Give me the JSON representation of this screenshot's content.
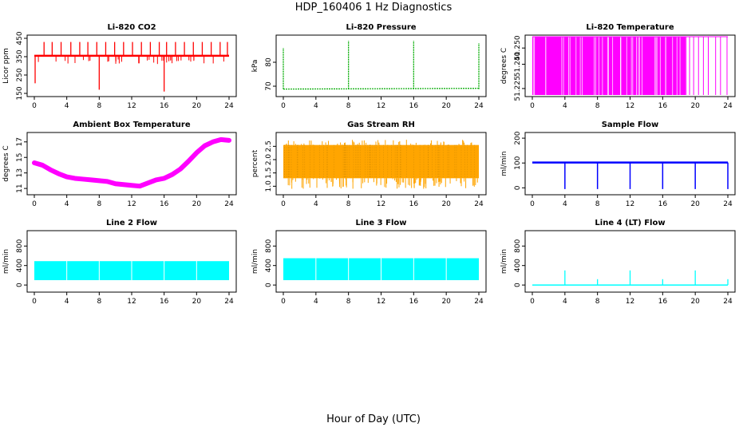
{
  "title": "HDP_160406  1 Hz Diagnostics",
  "xlabel": "Hour of Day (UTC)",
  "chart_data": [
    {
      "type": "line",
      "title": "Li-820 CO2",
      "ylabel": "Licor ppm",
      "color": "#ff0000",
      "xticks": [
        "0",
        "4",
        "8",
        "12",
        "16",
        "20",
        "24"
      ],
      "xlim": [
        0,
        24
      ],
      "yticks": [
        "150",
        "250",
        "350",
        "450"
      ],
      "ylim": [
        150,
        450
      ],
      "baseline": 355,
      "spikes": [
        [
          0.1,
          205
        ],
        [
          1.2,
          430
        ],
        [
          2.2,
          430
        ],
        [
          3.3,
          430
        ],
        [
          4.5,
          430
        ],
        [
          5.6,
          430
        ],
        [
          6.6,
          430
        ],
        [
          7.7,
          430
        ],
        [
          8.0,
          170
        ],
        [
          8.8,
          430
        ],
        [
          9.9,
          430
        ],
        [
          11.0,
          430
        ],
        [
          12.1,
          430
        ],
        [
          13.2,
          430
        ],
        [
          14.3,
          430
        ],
        [
          15.4,
          430
        ],
        [
          16.0,
          160
        ],
        [
          16.3,
          430
        ],
        [
          17.4,
          430
        ],
        [
          18.5,
          430
        ],
        [
          19.6,
          430
        ],
        [
          20.7,
          430
        ],
        [
          21.8,
          430
        ],
        [
          22.9,
          430
        ],
        [
          23.8,
          430
        ]
      ]
    },
    {
      "type": "line",
      "title": "Li-820 Pressure",
      "ylabel": "kPa",
      "color": "#00aa00",
      "xticks": [
        "0",
        "4",
        "8",
        "12",
        "16",
        "20",
        "24"
      ],
      "xlim": [
        0,
        24
      ],
      "yticks": [
        "70",
        "80"
      ],
      "ylim": [
        67,
        90
      ],
      "baseline": 68.8,
      "spikes": [
        [
          0.0,
          86
        ],
        [
          8.0,
          89
        ],
        [
          16.0,
          89
        ],
        [
          24.0,
          88
        ]
      ]
    },
    {
      "type": "line",
      "title": "Li-820 Temperature",
      "ylabel": "degrees C",
      "color": "#ff00ff",
      "xticks": [
        "0",
        "4",
        "8",
        "12",
        "16",
        "20",
        "24"
      ],
      "xlim": [
        0,
        24
      ],
      "yticks": [
        "51.225",
        "51.240",
        "51.250"
      ],
      "ylim": [
        51.222,
        51.256
      ],
      "fill_ranges": [
        [
          0.0,
          19.0
        ]
      ],
      "spikes": [
        19.3,
        19.8,
        20.4,
        21.0,
        21.6,
        22.5,
        23.1,
        23.9
      ]
    },
    {
      "type": "line",
      "title": "Ambient Box Temperature",
      "ylabel": "degrees C",
      "color": "#ff00ff",
      "xticks": [
        "0",
        "4",
        "8",
        "12",
        "16",
        "20",
        "24"
      ],
      "xlim": [
        0,
        24
      ],
      "yticks": [
        "11",
        "13",
        "15",
        "17"
      ],
      "ylim": [
        10.6,
        17.8
      ],
      "x": [
        0,
        1,
        2,
        3,
        4,
        5,
        6,
        7,
        8,
        9,
        10,
        11,
        12,
        13,
        14,
        15,
        16,
        17,
        18,
        19,
        20,
        21,
        22,
        23,
        24
      ],
      "y": [
        14.3,
        14.0,
        13.4,
        12.9,
        12.5,
        12.3,
        12.2,
        12.1,
        12.0,
        11.9,
        11.6,
        11.5,
        11.4,
        11.3,
        11.7,
        12.1,
        12.3,
        12.8,
        13.5,
        14.5,
        15.6,
        16.5,
        17.0,
        17.3,
        17.2
      ]
    },
    {
      "type": "area",
      "title": "Gas Stream RH",
      "ylabel": "percent",
      "color": "#ffa500",
      "color2": "#cc8800",
      "xticks": [
        "0",
        "4",
        "8",
        "12",
        "16",
        "20",
        "24"
      ],
      "xlim": [
        0,
        24
      ],
      "yticks": [
        "1.0",
        "1.5",
        "2.0",
        "2.5"
      ],
      "ylim": [
        0.8,
        2.9
      ],
      "band": [
        1.3,
        2.55
      ],
      "ymin": 0.9,
      "ymax": 2.75
    },
    {
      "type": "line",
      "title": "Sample Flow",
      "ylabel": "ml/min",
      "color": "#0000ff",
      "xticks": [
        "0",
        "4",
        "8",
        "12",
        "16",
        "20",
        "24"
      ],
      "xlim": [
        0,
        24
      ],
      "yticks": [
        "0",
        "100",
        "200"
      ],
      "ylim": [
        -15,
        210
      ],
      "baseline": 102,
      "dips": [
        [
          4.0,
          -5
        ],
        [
          8.0,
          -5
        ],
        [
          12.0,
          -5
        ],
        [
          16.0,
          -5
        ],
        [
          20.0,
          -5
        ],
        [
          24.0,
          -5
        ]
      ]
    },
    {
      "type": "area",
      "title": "Line 2 Flow",
      "ylabel": "ml/min",
      "color": "#00ffff",
      "xticks": [
        "0",
        "4",
        "8",
        "12",
        "16",
        "20",
        "24"
      ],
      "xlim": [
        0,
        24
      ],
      "yticks": [
        "0",
        "400",
        "800"
      ],
      "ylim": [
        -80,
        1050
      ],
      "band": [
        100,
        490
      ],
      "gaps": [
        4.0,
        8.0,
        12.0,
        16.0,
        20.0
      ]
    },
    {
      "type": "area",
      "title": "Line 3 Flow",
      "ylabel": "ml/min",
      "color": "#00ffff",
      "xticks": [
        "0",
        "4",
        "8",
        "12",
        "16",
        "20",
        "24"
      ],
      "xlim": [
        0,
        24
      ],
      "yticks": [
        "0",
        "400",
        "800"
      ],
      "ylim": [
        -80,
        1050
      ],
      "band": [
        100,
        550
      ],
      "gaps": [
        4.0,
        8.0,
        12.0,
        16.0,
        20.0
      ]
    },
    {
      "type": "line",
      "title": "Line 4 (LT) Flow",
      "ylabel": "ml/min",
      "color": "#00ffff",
      "xticks": [
        "0",
        "4",
        "8",
        "12",
        "16",
        "20",
        "24"
      ],
      "xlim": [
        0,
        24
      ],
      "yticks": [
        "0",
        "400",
        "800"
      ],
      "ylim": [
        -80,
        1050
      ],
      "baseline": 0,
      "spikes": [
        [
          4.0,
          300
        ],
        [
          8.0,
          120
        ],
        [
          12.0,
          300
        ],
        [
          16.0,
          120
        ],
        [
          20.0,
          300
        ],
        [
          24.0,
          120
        ]
      ]
    }
  ]
}
